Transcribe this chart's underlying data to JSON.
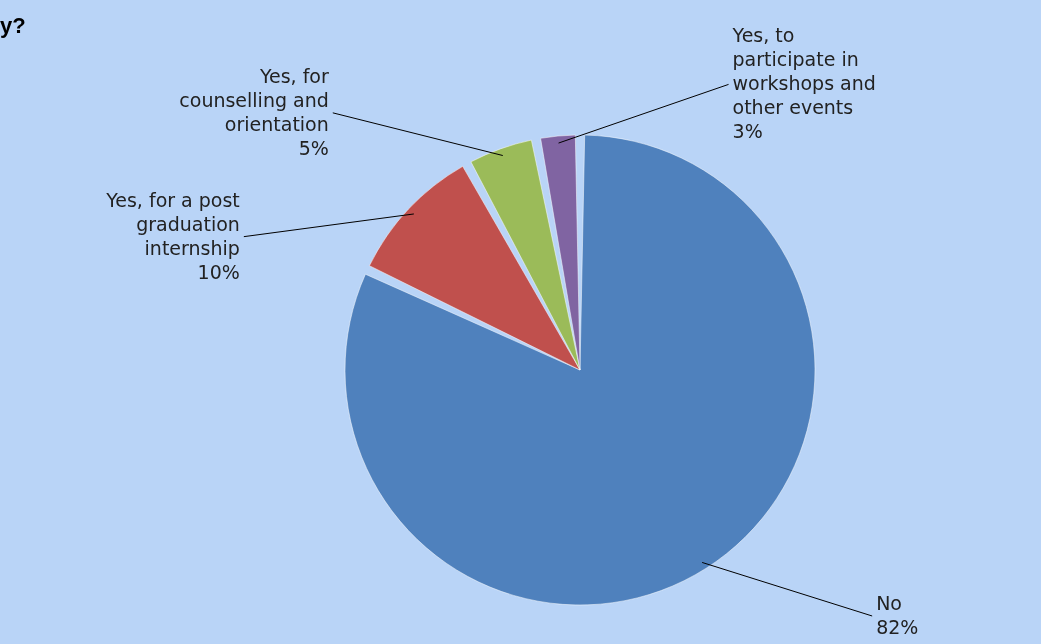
{
  "chart_data": {
    "type": "pie",
    "title": "y?",
    "categories": [
      "No",
      "Yes, for a post graduation internship",
      "Yes, for counselling and orientation",
      "Yes, to participate in workshops and other events"
    ],
    "values": [
      82,
      10,
      5,
      3
    ],
    "colors": [
      "#4f81bd",
      "#c0504d",
      "#9bbb59",
      "#8064a2"
    ],
    "value_labels": [
      "82%",
      "10%",
      "5%",
      "3%"
    ],
    "legend": false
  }
}
